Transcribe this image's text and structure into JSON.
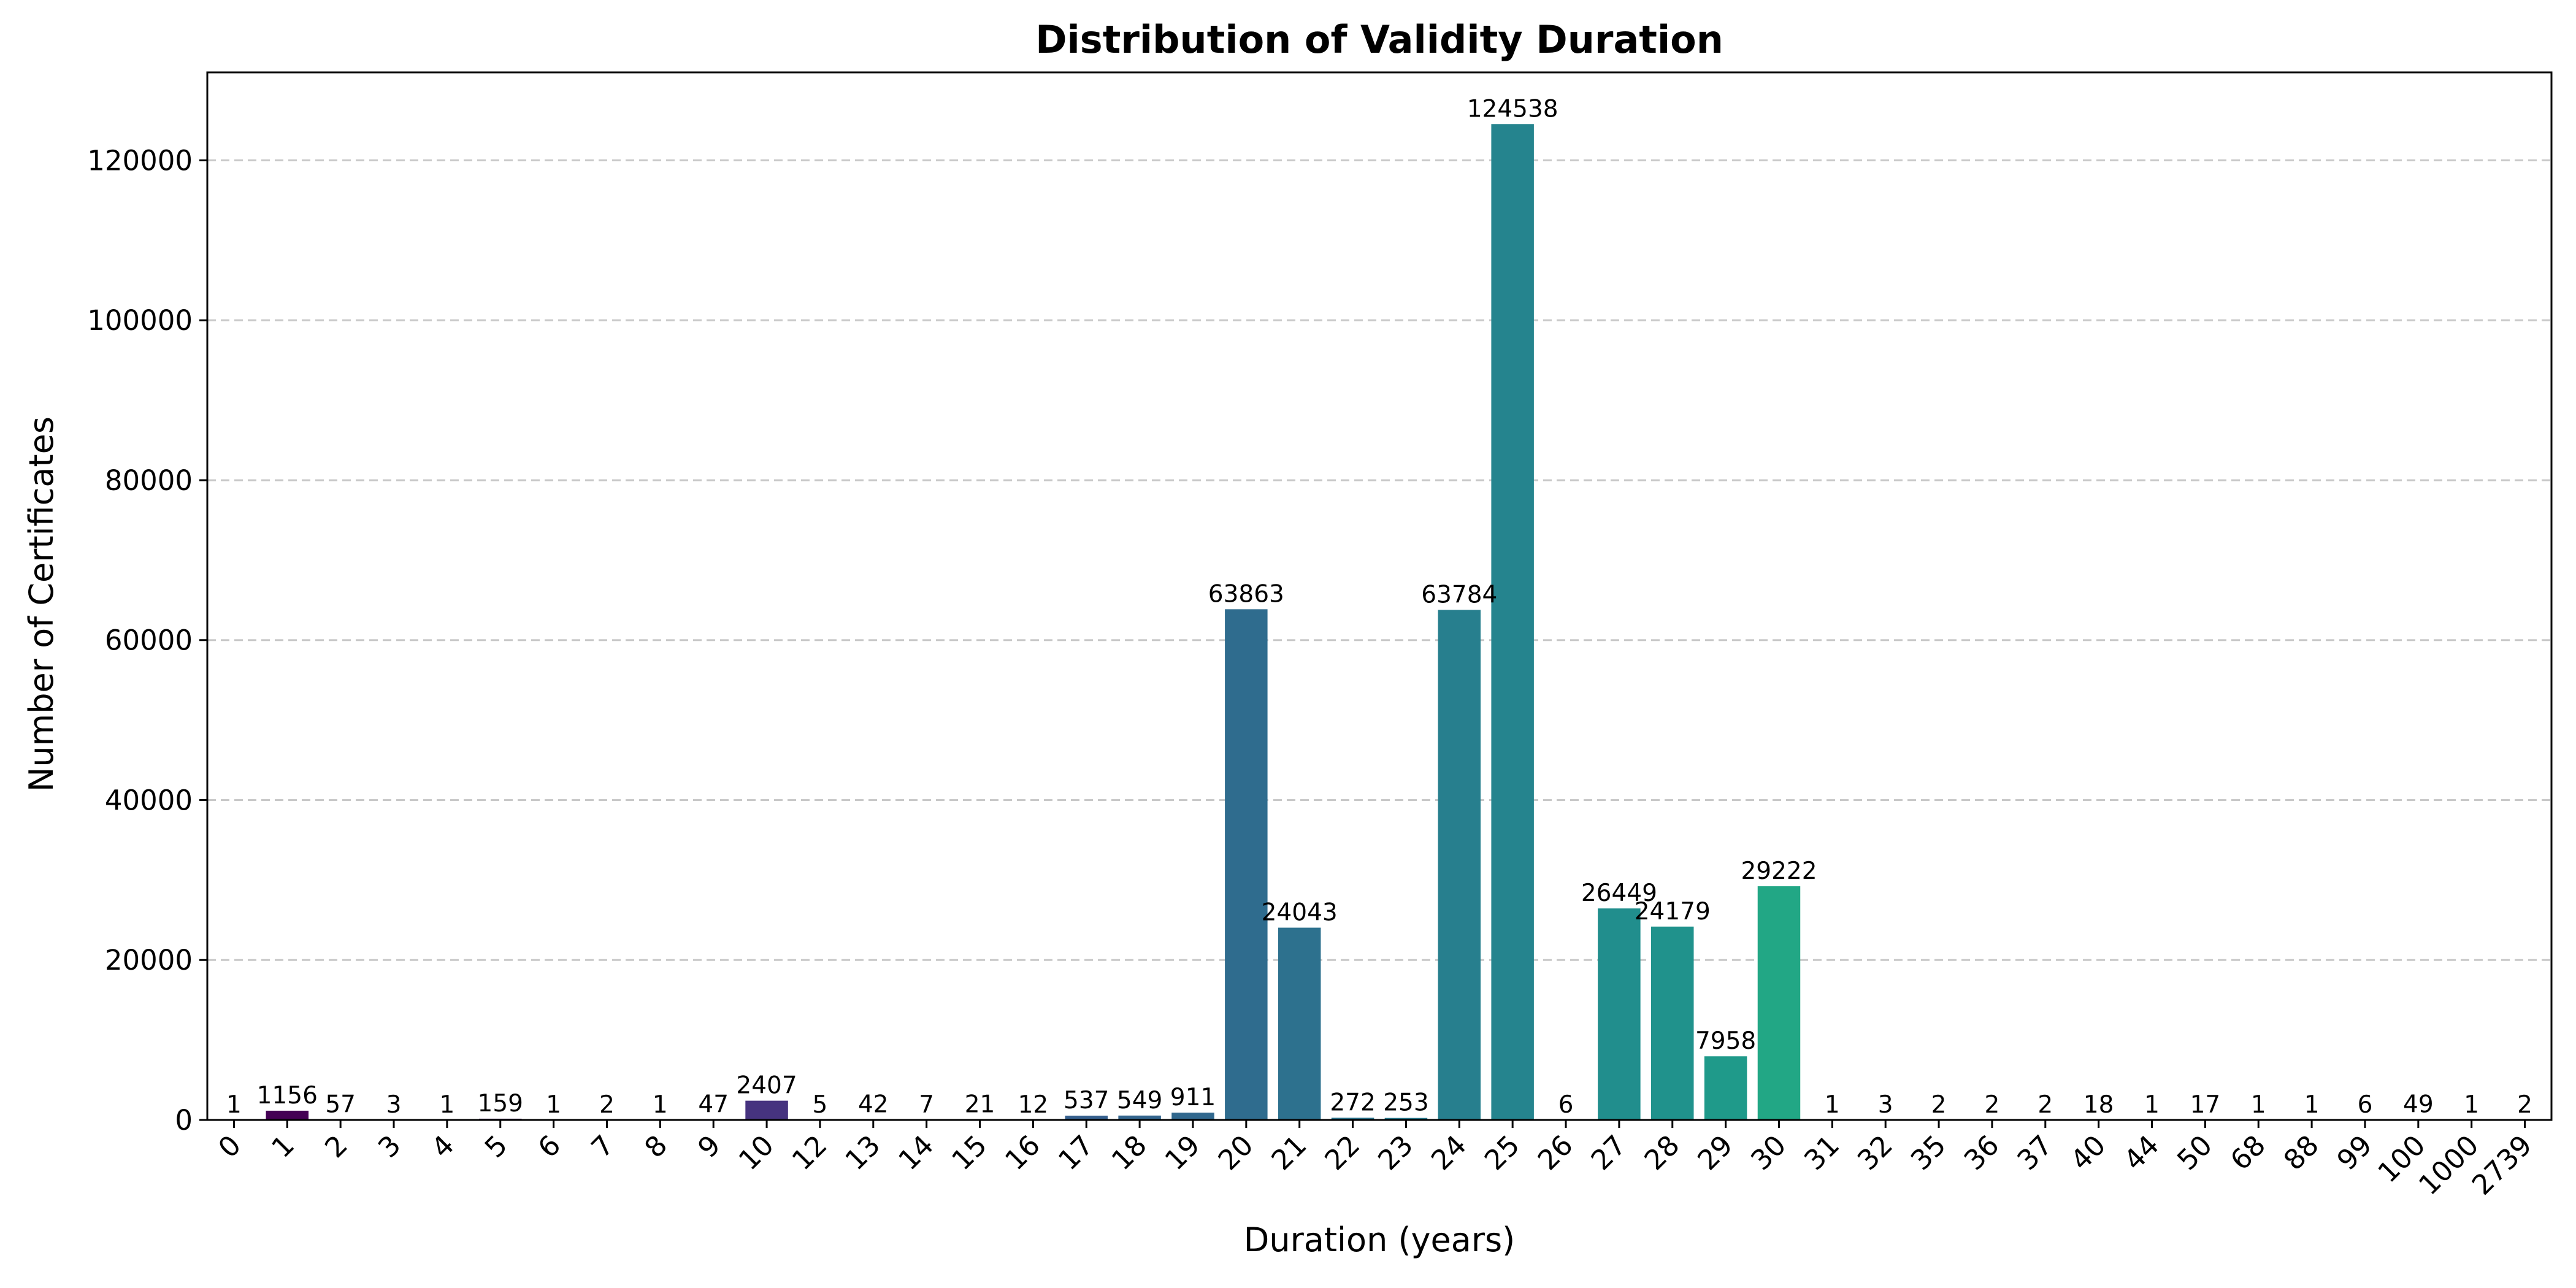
{
  "chart_data": {
    "type": "bar",
    "title": "Distribution of Validity Duration",
    "xlabel": "Duration (years)",
    "ylabel": "Number of Certificates",
    "ylim": [
      0,
      131000
    ],
    "yticks": [
      0,
      20000,
      40000,
      60000,
      80000,
      100000,
      120000
    ],
    "grid": "y dashed",
    "categories": [
      "0",
      "1",
      "2",
      "3",
      "4",
      "5",
      "6",
      "7",
      "8",
      "9",
      "10",
      "12",
      "13",
      "14",
      "15",
      "16",
      "17",
      "18",
      "19",
      "20",
      "21",
      "22",
      "23",
      "24",
      "25",
      "26",
      "27",
      "28",
      "29",
      "30",
      "31",
      "32",
      "35",
      "36",
      "37",
      "40",
      "44",
      "50",
      "68",
      "88",
      "99",
      "100",
      "1000",
      "2739"
    ],
    "values": [
      1,
      1156,
      57,
      3,
      1,
      159,
      1,
      2,
      1,
      47,
      2407,
      5,
      42,
      7,
      21,
      12,
      537,
      549,
      911,
      63863,
      24043,
      272,
      253,
      63784,
      124538,
      6,
      26449,
      24179,
      7958,
      29222,
      1,
      3,
      2,
      2,
      2,
      18,
      1,
      17,
      1,
      1,
      6,
      49,
      1,
      2
    ],
    "colors": [
      "#440154",
      "#440154",
      "#450559",
      "#46085c",
      "#470d60",
      "#481467",
      "#482071",
      "#482576",
      "#482a7c",
      "#472e7e",
      "#46337f",
      "#433e85",
      "#404688",
      "#3d4d8a",
      "#3a548c",
      "#38598c",
      "#355f8d",
      "#33648d",
      "#31688e",
      "#2f6c8e",
      "#2d718e",
      "#2b758e",
      "#297a8e",
      "#277f8e",
      "#25848e",
      "#23888e",
      "#218e8d",
      "#20928c",
      "#1f9a8a",
      "#22a785",
      "#27ad81",
      "#31b57b",
      "#3bbb75",
      "#47c16e",
      "#54c568",
      "#63cb5f",
      "#74d055",
      "#84d44b",
      "#95d840",
      "#a8db34",
      "#bade28",
      "#cde11d",
      "#dfe318",
      "#fde725"
    ]
  }
}
